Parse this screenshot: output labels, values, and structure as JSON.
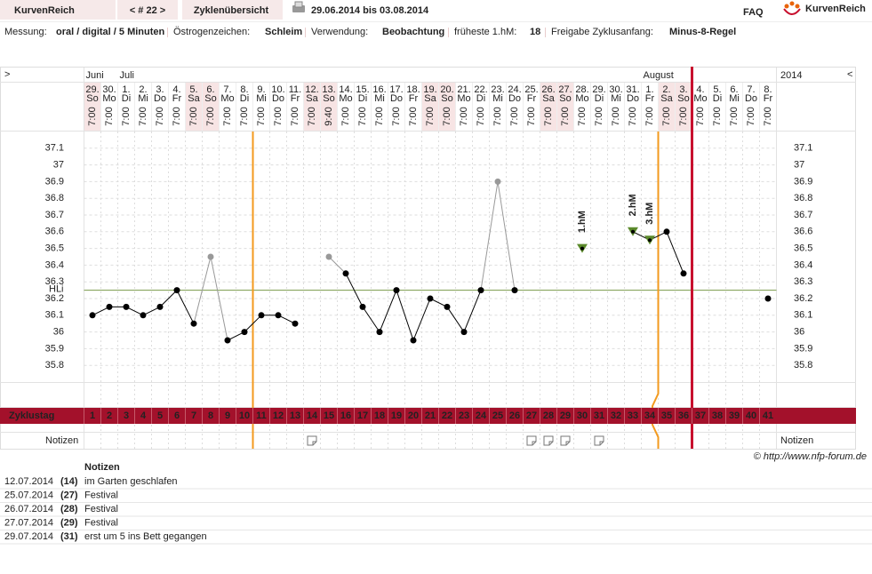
{
  "header": {
    "logo": "KurvenReich",
    "cycle_nav": "< # 22 >",
    "overview": "Zyklenübersicht",
    "date_range": "29.06.2014 bis 03.08.2014",
    "faq": "FAQ",
    "brand": "KurvenReich"
  },
  "info": [
    {
      "label": "Messung:",
      "value": "oral / digital / 5 Minuten"
    },
    {
      "label": "Östrogenzeichen:",
      "value": "Schleim"
    },
    {
      "label": "Verwendung:",
      "value": "Beobachtung"
    },
    {
      "label": "früheste 1.hM:",
      "value": 18
    },
    {
      "label": "Freigabe Zyklusanfang:",
      "value": "Minus-8-Regel"
    }
  ],
  "chart_data": {
    "type": "line",
    "nav_left": ">",
    "year": "2014",
    "nav_right": "<",
    "months": [
      "Juni",
      null,
      "Juli",
      null,
      null,
      null,
      null,
      null,
      null,
      null,
      null,
      null,
      null,
      null,
      null,
      null,
      null,
      null,
      null,
      null,
      null,
      null,
      null,
      null,
      null,
      null,
      null,
      null,
      null,
      null,
      null,
      null,
      null,
      "August",
      null,
      null,
      null,
      null,
      null,
      null,
      null
    ],
    "dates": [
      "29.",
      "30.",
      "1.",
      "2.",
      "3.",
      "4.",
      "5.",
      "6.",
      "7.",
      "8.",
      "9.",
      "10.",
      "11.",
      "12.",
      "13.",
      "14.",
      "15.",
      "16.",
      "17.",
      "18.",
      "19.",
      "20.",
      "21.",
      "22.",
      "23.",
      "24.",
      "25.",
      "26.",
      "27.",
      "28.",
      "29.",
      "30.",
      "31.",
      "1.",
      "2.",
      "3.",
      "4.",
      "5.",
      "6.",
      "7.",
      "8."
    ],
    "weekdays": [
      "So",
      "Mo",
      "Di",
      "Mi",
      "Do",
      "Fr",
      "Sa",
      "So",
      "Mo",
      "Di",
      "Mi",
      "Do",
      "Fr",
      "Sa",
      "So",
      "Mo",
      "Di",
      "Mi",
      "Do",
      "Fr",
      "Sa",
      "So",
      "Mo",
      "Di",
      "Mi",
      "Do",
      "Fr",
      "Sa",
      "So",
      "Mo",
      "Di",
      "Mi",
      "Do",
      "Fr",
      "Sa",
      "So",
      "Mo",
      "Di",
      "Mi",
      "Do",
      "Fr"
    ],
    "times": [
      "7:00",
      "7:00",
      "7:00",
      "7:00",
      "7:00",
      "7:00",
      "7:00",
      "7:00",
      "7:00",
      "7:00",
      "7:00",
      "7:00",
      "7:00",
      "7:00",
      "9:40",
      "7:00",
      "7:00",
      "7:00",
      "7:00",
      "7:00",
      "7:00",
      "7:00",
      "7:00",
      "7:00",
      "7:00",
      "7:00",
      "7:00",
      "7:00",
      "7:00",
      "7:00",
      "7:00",
      "7:00",
      "7:00",
      "7:00",
      "7:00",
      "7:00",
      "7:00",
      "7:00",
      "7:00",
      "7:00",
      "7:00"
    ],
    "values": [
      36.1,
      36.15,
      36.15,
      36.1,
      36.15,
      36.25,
      36.05,
      36.45,
      35.95,
      36.0,
      36.1,
      36.1,
      36.05,
      null,
      36.45,
      36.35,
      36.15,
      36.0,
      36.25,
      35.95,
      36.2,
      36.15,
      36.0,
      36.25,
      36.9,
      36.25,
      null,
      null,
      null,
      36.5,
      null,
      null,
      36.6,
      36.55,
      36.6,
      36.35,
      null,
      null,
      null,
      null,
      36.2
    ],
    "excluded": [
      false,
      false,
      false,
      false,
      false,
      false,
      false,
      true,
      false,
      false,
      false,
      false,
      false,
      false,
      true,
      false,
      false,
      false,
      false,
      false,
      false,
      false,
      false,
      false,
      true,
      false,
      false,
      false,
      false,
      false,
      false,
      false,
      false,
      false,
      false,
      false,
      false,
      false,
      false,
      false,
      false
    ],
    "marker_labels": [
      null,
      null,
      null,
      null,
      null,
      null,
      null,
      null,
      null,
      null,
      null,
      null,
      null,
      null,
      null,
      null,
      null,
      null,
      null,
      null,
      null,
      null,
      null,
      null,
      null,
      null,
      null,
      null,
      null,
      "1.hM",
      null,
      null,
      "2.hM",
      "3.hM",
      null,
      null,
      null,
      null,
      null,
      null,
      null
    ],
    "color": "#000000",
    "excluded_color": "#999999",
    "marker_color": "#5b8a2b",
    "hli": {
      "label": "HLi",
      "value": 36.25,
      "color": "#7a9a4a"
    },
    "ylim": [
      35.7,
      37.2
    ],
    "yticks": [
      35.8,
      35.9,
      36,
      36.1,
      36.2,
      36.3,
      36.4,
      36.5,
      36.6,
      36.7,
      36.8,
      36.9,
      37,
      37.1
    ],
    "grid": true,
    "cycle_label": "Zyklustag",
    "cycle_days": [
      1,
      2,
      3,
      4,
      5,
      6,
      7,
      8,
      9,
      10,
      11,
      12,
      13,
      14,
      15,
      16,
      17,
      18,
      19,
      20,
      21,
      22,
      23,
      24,
      25,
      26,
      27,
      28,
      29,
      30,
      31,
      32,
      33,
      34,
      35,
      36,
      37,
      38,
      39,
      40,
      41
    ],
    "notes_label": "Notizen"
  },
  "credit": "© http://www.nfp-forum.de",
  "notes": {
    "title": "Notizen",
    "rows": [
      {
        "date": "12.07.2014",
        "day": "(14)",
        "text": "im Garten geschlafen"
      },
      {
        "date": "25.07.2014",
        "day": "(27)",
        "text": "Festival"
      },
      {
        "date": "26.07.2014",
        "day": "(28)",
        "text": "Festival"
      },
      {
        "date": "27.07.2014",
        "day": "(29)",
        "text": "Festival"
      },
      {
        "date": "29.07.2014",
        "day": "(31)",
        "text": "erst um 5 ins Bett gegangen"
      }
    ]
  }
}
